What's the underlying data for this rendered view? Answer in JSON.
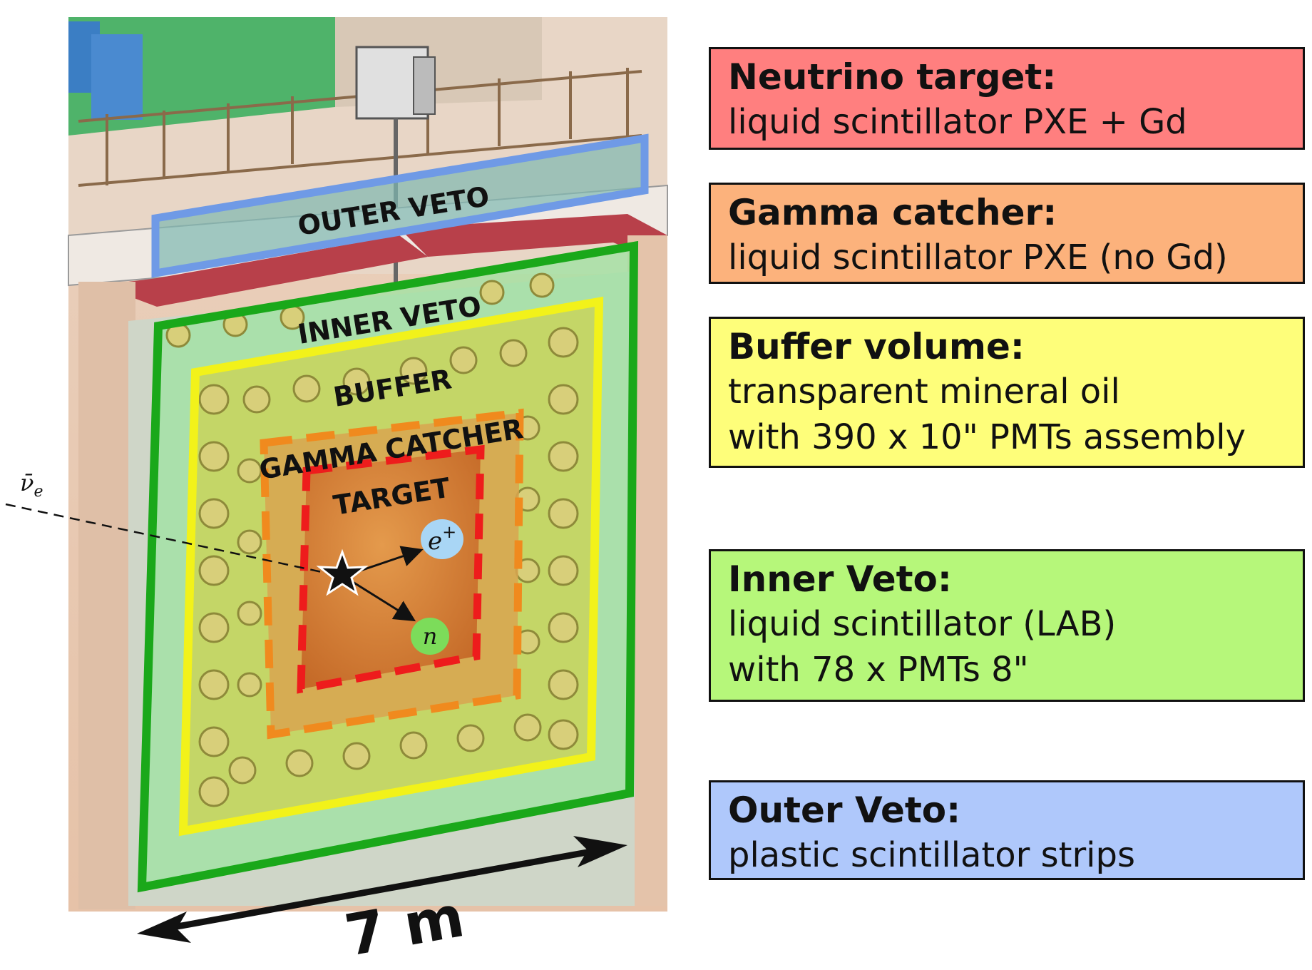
{
  "diagram": {
    "labels": {
      "outer_veto": "OUTER VETO",
      "inner_veto": "INNER VETO",
      "buffer": "BUFFER",
      "gamma_catcher": "GAMMA CATCHER",
      "target": "TARGET",
      "neutrino": "ν̄",
      "neutrino_sub": "e",
      "positron": "e",
      "positron_sup": "+",
      "neutron": "n",
      "scale": "7 m"
    },
    "colors": {
      "outer_veto": "#6f9ae6",
      "inner_veto": "#1aa81a",
      "buffer": "#f2f21a",
      "gamma_catcher": "#f08a1e",
      "target": "#ee1c1c",
      "positron_fill": "#a9d6f5",
      "neutron_fill": "#7cdc5a"
    }
  },
  "legend": [
    {
      "id": "target",
      "title": "Neutrino target:",
      "lines": [
        "liquid scintillator PXE + Gd"
      ],
      "color": "#ff7f7f"
    },
    {
      "id": "gamma",
      "title": "Gamma catcher:",
      "lines": [
        "liquid scintillator PXE (no Gd)"
      ],
      "color": "#fcb27c"
    },
    {
      "id": "buffer",
      "title": "Buffer volume:",
      "lines": [
        "transparent mineral oil",
        "with 390 x 10\" PMTs assembly"
      ],
      "color": "#fefe7a"
    },
    {
      "id": "iv",
      "title": "Inner Veto:",
      "lines": [
        "liquid scintillator (LAB)",
        "with 78 x PMTs 8\""
      ],
      "color": "#b6f77a"
    },
    {
      "id": "ov",
      "title": "Outer Veto:",
      "lines": [
        "plastic scintillator strips"
      ],
      "color": "#afc8fb"
    }
  ]
}
